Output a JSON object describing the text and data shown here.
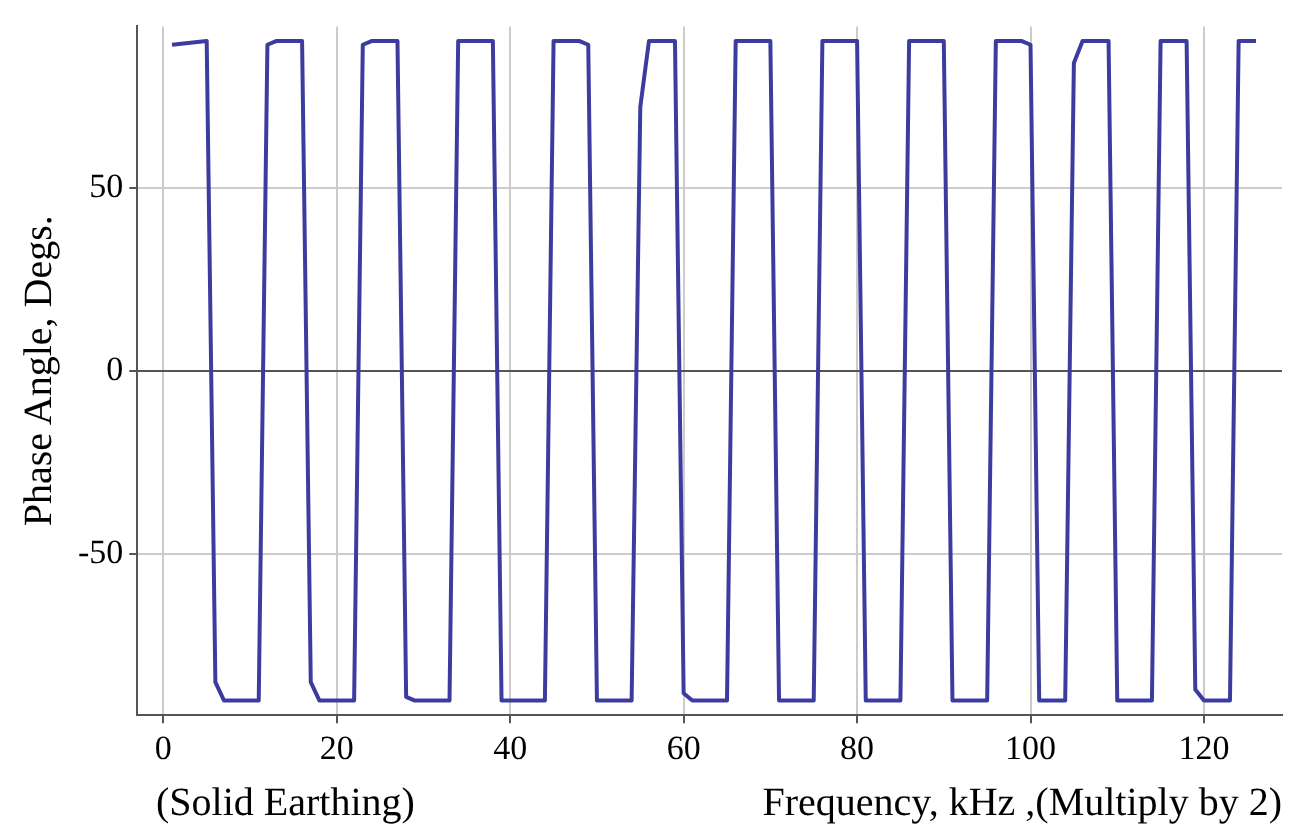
{
  "chart_data": {
    "type": "line",
    "xlabel": "Frequency, kHz ,(Multiply by 2)",
    "ylabel": "Phase Angle, Degs.",
    "annotations": [
      "(Solid Earthing)"
    ],
    "x": [
      1,
      5,
      6,
      7,
      11,
      12,
      13,
      16,
      17,
      18,
      22,
      23,
      24,
      27,
      28,
      29,
      33,
      34,
      38,
      39,
      44,
      45,
      48,
      49,
      50,
      54,
      55,
      56,
      59,
      60,
      61,
      65,
      66,
      70,
      71,
      75,
      76,
      80,
      81,
      85,
      86,
      90,
      91,
      95,
      96,
      99,
      100,
      101,
      104,
      105,
      106,
      109,
      110,
      114,
      115,
      118,
      119,
      120,
      123,
      124,
      126
    ],
    "series": [
      {
        "color": "#3c3ca0",
        "values": [
          89,
          90,
          -85,
          -90,
          -90,
          89,
          90,
          90,
          -85,
          -90,
          -90,
          89,
          90,
          90,
          -89,
          -90,
          -90,
          90,
          90,
          -90,
          -90,
          90,
          90,
          89,
          -90,
          -90,
          72,
          90,
          90,
          -88,
          -90,
          -90,
          90,
          90,
          -90,
          -90,
          90,
          90,
          -90,
          -90,
          90,
          90,
          -90,
          -90,
          90,
          90,
          89,
          -90,
          -90,
          84,
          90,
          90,
          -90,
          -90,
          90,
          90,
          -87,
          -90,
          -90,
          90,
          90
        ]
      }
    ],
    "xlim": [
      -3,
      129
    ],
    "ylim": [
      -94,
      94
    ],
    "xticks": [
      0,
      20,
      40,
      60,
      80,
      100,
      120
    ],
    "yticks": [
      -50,
      0,
      50
    ],
    "grid": true,
    "legend": false,
    "marker": "none",
    "line_style": "solid"
  }
}
